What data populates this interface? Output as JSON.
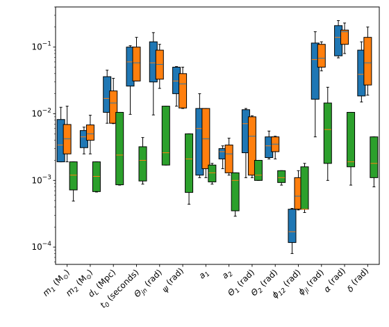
{
  "chart_data": {
    "type": "box",
    "title": "",
    "xlabel": "",
    "ylabel": "",
    "yscale": "log",
    "ylim": [
      5.5e-05,
      0.4
    ],
    "yticks": [
      {
        "value": 0.0001,
        "base": "10",
        "exp": "−4"
      },
      {
        "value": 0.001,
        "base": "10",
        "exp": "−3"
      },
      {
        "value": 0.01,
        "base": "10",
        "exp": "−2"
      },
      {
        "value": 0.1,
        "base": "10",
        "exp": "−1"
      }
    ],
    "categories": [
      {
        "main": "m",
        "sub": "1",
        "rest": " (M",
        "sub2": "⊙",
        "end": ")"
      },
      {
        "main": "m",
        "sub": "2",
        "rest": " (M",
        "sub2": "⊙",
        "end": ")"
      },
      {
        "main": "d",
        "sub": "L",
        "rest": " (Mpc)"
      },
      {
        "main": "t",
        "sub": "0",
        "rest": " (seconds)"
      },
      {
        "main": "Θ",
        "sub": "jn",
        "rest": " (rad)"
      },
      {
        "main": "ψ",
        "sub": "",
        "rest": " (rad)"
      },
      {
        "main": "a",
        "sub": "1",
        "rest": ""
      },
      {
        "main": "a",
        "sub": "2",
        "rest": ""
      },
      {
        "main": "Θ",
        "sub": "1",
        "rest": " (rad)"
      },
      {
        "main": "Θ",
        "sub": "2",
        "rest": " (rad)"
      },
      {
        "main": "ϕ",
        "sub": "12",
        "rest": " (rad)"
      },
      {
        "main": "ϕ",
        "sub": "jl",
        "rest": " (rad)"
      },
      {
        "main": "α",
        "sub": "",
        "rest": " (rad)"
      },
      {
        "main": "δ",
        "sub": "",
        "rest": " (rad)"
      }
    ],
    "series": [
      {
        "color": "#1f77b4",
        "boxes": [
          {
            "whislo": 0.0019,
            "q1": 0.0019,
            "med": 0.0034,
            "q3": 0.0082,
            "whishi": 0.0125
          },
          {
            "whislo": 0.0025,
            "q1": 0.0031,
            "med": 0.0045,
            "q3": 0.0056,
            "whishi": 0.0063
          },
          {
            "whislo": 0.0072,
            "q1": 0.0105,
            "med": 0.017,
            "q3": 0.036,
            "whishi": 0.045
          },
          {
            "whislo": 0.0098,
            "q1": 0.026,
            "med": 0.06,
            "q3": 0.1,
            "whishi": 0.105
          },
          {
            "whislo": 0.0096,
            "q1": 0.03,
            "med": 0.058,
            "q3": 0.12,
            "whishi": 0.165
          },
          {
            "whislo": 0.013,
            "q1": 0.02,
            "med": 0.031,
            "q3": 0.05,
            "whishi": 0.051
          },
          {
            "whislo": 0.0011,
            "q1": 0.0012,
            "med": 0.006,
            "q3": 0.012,
            "whishi": 0.02
          },
          {
            "whislo": 0.0015,
            "q1": 0.0021,
            "med": 0.0027,
            "q3": 0.003,
            "whishi": 0.0033
          },
          {
            "whislo": 0.0011,
            "q1": 0.0026,
            "med": 0.0071,
            "q3": 0.0115,
            "whishi": 0.012
          },
          {
            "whislo": 0.0021,
            "q1": 0.0022,
            "med": 0.0033,
            "q3": 0.0045,
            "whishi": 0.0055
          },
          {
            "whislo": 8e-05,
            "q1": 0.000117,
            "med": 0.00017,
            "q3": 0.00037,
            "whishi": 0.00038
          },
          {
            "whislo": 0.0045,
            "q1": 0.0165,
            "med": 0.065,
            "q3": 0.115,
            "whishi": 0.17
          },
          {
            "whislo": 0.069,
            "q1": 0.074,
            "med": 0.14,
            "q3": 0.21,
            "whishi": 0.25
          },
          {
            "whislo": 0.015,
            "q1": 0.0185,
            "med": 0.039,
            "q3": 0.09,
            "whishi": 0.12
          }
        ]
      },
      {
        "color": "#ff7f0e",
        "boxes": [
          {
            "whislo": 0.0019,
            "q1": 0.0025,
            "med": 0.0042,
            "q3": 0.0069,
            "whishi": 0.013
          },
          {
            "whislo": 0.0025,
            "q1": 0.004,
            "med": 0.005,
            "q3": 0.0068,
            "whishi": 0.0095
          },
          {
            "whislo": 0.0071,
            "q1": 0.0072,
            "med": 0.0145,
            "q3": 0.022,
            "whishi": 0.034
          },
          {
            "whislo": 0.031,
            "q1": 0.031,
            "med": 0.058,
            "q3": 0.1,
            "whishi": 0.14
          },
          {
            "whislo": 0.024,
            "q1": 0.033,
            "med": 0.055,
            "q3": 0.09,
            "whishi": 0.11
          },
          {
            "whislo": 0.012,
            "q1": 0.0122,
            "med": 0.028,
            "q3": 0.04,
            "whishi": 0.05
          },
          {
            "whislo": 0.0011,
            "q1": 0.0015,
            "med": 0.0042,
            "q3": 0.012,
            "whishi": 0.012
          },
          {
            "whislo": 0.0012,
            "q1": 0.0013,
            "med": 0.0025,
            "q3": 0.0034,
            "whishi": 0.0043
          },
          {
            "whislo": 0.0011,
            "q1": 0.0012,
            "med": 0.0046,
            "q3": 0.009,
            "whishi": 0.0093
          },
          {
            "whislo": 0.0021,
            "q1": 0.0027,
            "med": 0.0035,
            "q3": 0.0045,
            "whishi": 0.0046
          },
          {
            "whislo": 0.00036,
            "q1": 0.00037,
            "med": 0.00058,
            "q3": 0.0011,
            "whishi": 0.0014
          },
          {
            "whislo": 0.044,
            "q1": 0.05,
            "med": 0.068,
            "q3": 0.11,
            "whishi": 0.12
          },
          {
            "whislo": 0.08,
            "q1": 0.11,
            "med": 0.17,
            "q3": 0.18,
            "whishi": 0.23
          },
          {
            "whislo": 0.019,
            "q1": 0.027,
            "med": 0.058,
            "q3": 0.14,
            "whishi": 0.2
          }
        ]
      },
      {
        "color": "#2ca02c",
        "boxes": [
          {
            "whislo": 0.00049,
            "q1": 0.00072,
            "med": 0.0012,
            "q3": 0.0019,
            "whishi": 0.0019
          },
          {
            "whislo": 0.00067,
            "q1": 0.00068,
            "med": 0.00115,
            "q3": 0.0019,
            "whishi": 0.0019
          },
          {
            "whislo": 0.00085,
            "q1": 0.00086,
            "med": 0.0024,
            "q3": 0.0105,
            "whishi": 0.0105
          },
          {
            "whislo": 0.00088,
            "q1": 0.00098,
            "med": 0.002,
            "q3": 0.0032,
            "whishi": 0.0044
          },
          {
            "whislo": 0.0017,
            "q1": 0.0017,
            "med": 0.0026,
            "q3": 0.013,
            "whishi": 0.013
          },
          {
            "whislo": 0.00044,
            "q1": 0.00066,
            "med": 0.0021,
            "q3": 0.005,
            "whishi": 0.005
          },
          {
            "whislo": 0.00088,
            "q1": 0.00095,
            "med": 0.0013,
            "q3": 0.0017,
            "whishi": 0.0018
          },
          {
            "whislo": 0.00029,
            "q1": 0.00035,
            "med": 0.001,
            "q3": 0.0013,
            "whishi": 0.0013
          },
          {
            "whislo": 0.001,
            "q1": 0.001,
            "med": 0.0012,
            "q3": 0.002,
            "whishi": 0.002
          },
          {
            "whislo": 0.00085,
            "q1": 0.00093,
            "med": 0.0011,
            "q3": 0.0014,
            "whishi": 0.0014
          },
          {
            "whislo": 0.00033,
            "q1": 0.00037,
            "med": 0.00037,
            "q3": 0.0016,
            "whishi": 0.0018
          },
          {
            "whislo": 0.001,
            "q1": 0.0018,
            "med": 0.0058,
            "q3": 0.0145,
            "whishi": 0.025
          },
          {
            "whislo": 0.00085,
            "q1": 0.0016,
            "med": 0.0019,
            "q3": 0.0105,
            "whishi": 0.0105
          },
          {
            "whislo": 0.0008,
            "q1": 0.0011,
            "med": 0.0018,
            "q3": 0.0045,
            "whishi": 0.0045
          }
        ]
      }
    ]
  }
}
